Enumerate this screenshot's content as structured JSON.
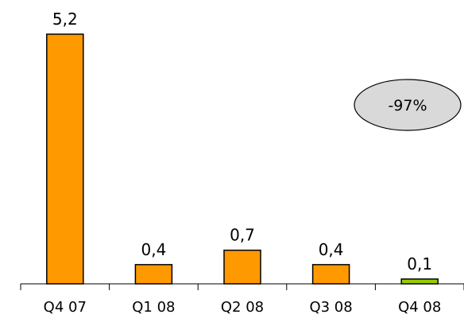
{
  "chart_data": {
    "type": "bar",
    "categories": [
      "Q4 07",
      "Q1 08",
      "Q2 08",
      "Q3 08",
      "Q4 08"
    ],
    "values": [
      5.2,
      0.4,
      0.7,
      0.4,
      0.1
    ],
    "value_labels": [
      "5,2",
      "0,4",
      "0,7",
      "0,4",
      "0,1"
    ],
    "bar_colors": [
      "#FF9900",
      "#FF9900",
      "#FF9900",
      "#FF9900",
      "#99CC00"
    ],
    "title": "",
    "xlabel": "",
    "ylabel": "",
    "ylim": [
      0,
      5.2
    ],
    "grid": false,
    "legend": "none",
    "annotation": {
      "text": "-97%",
      "shape": "ellipse",
      "fill": "#D9D9D9",
      "stroke": "#000000"
    }
  }
}
